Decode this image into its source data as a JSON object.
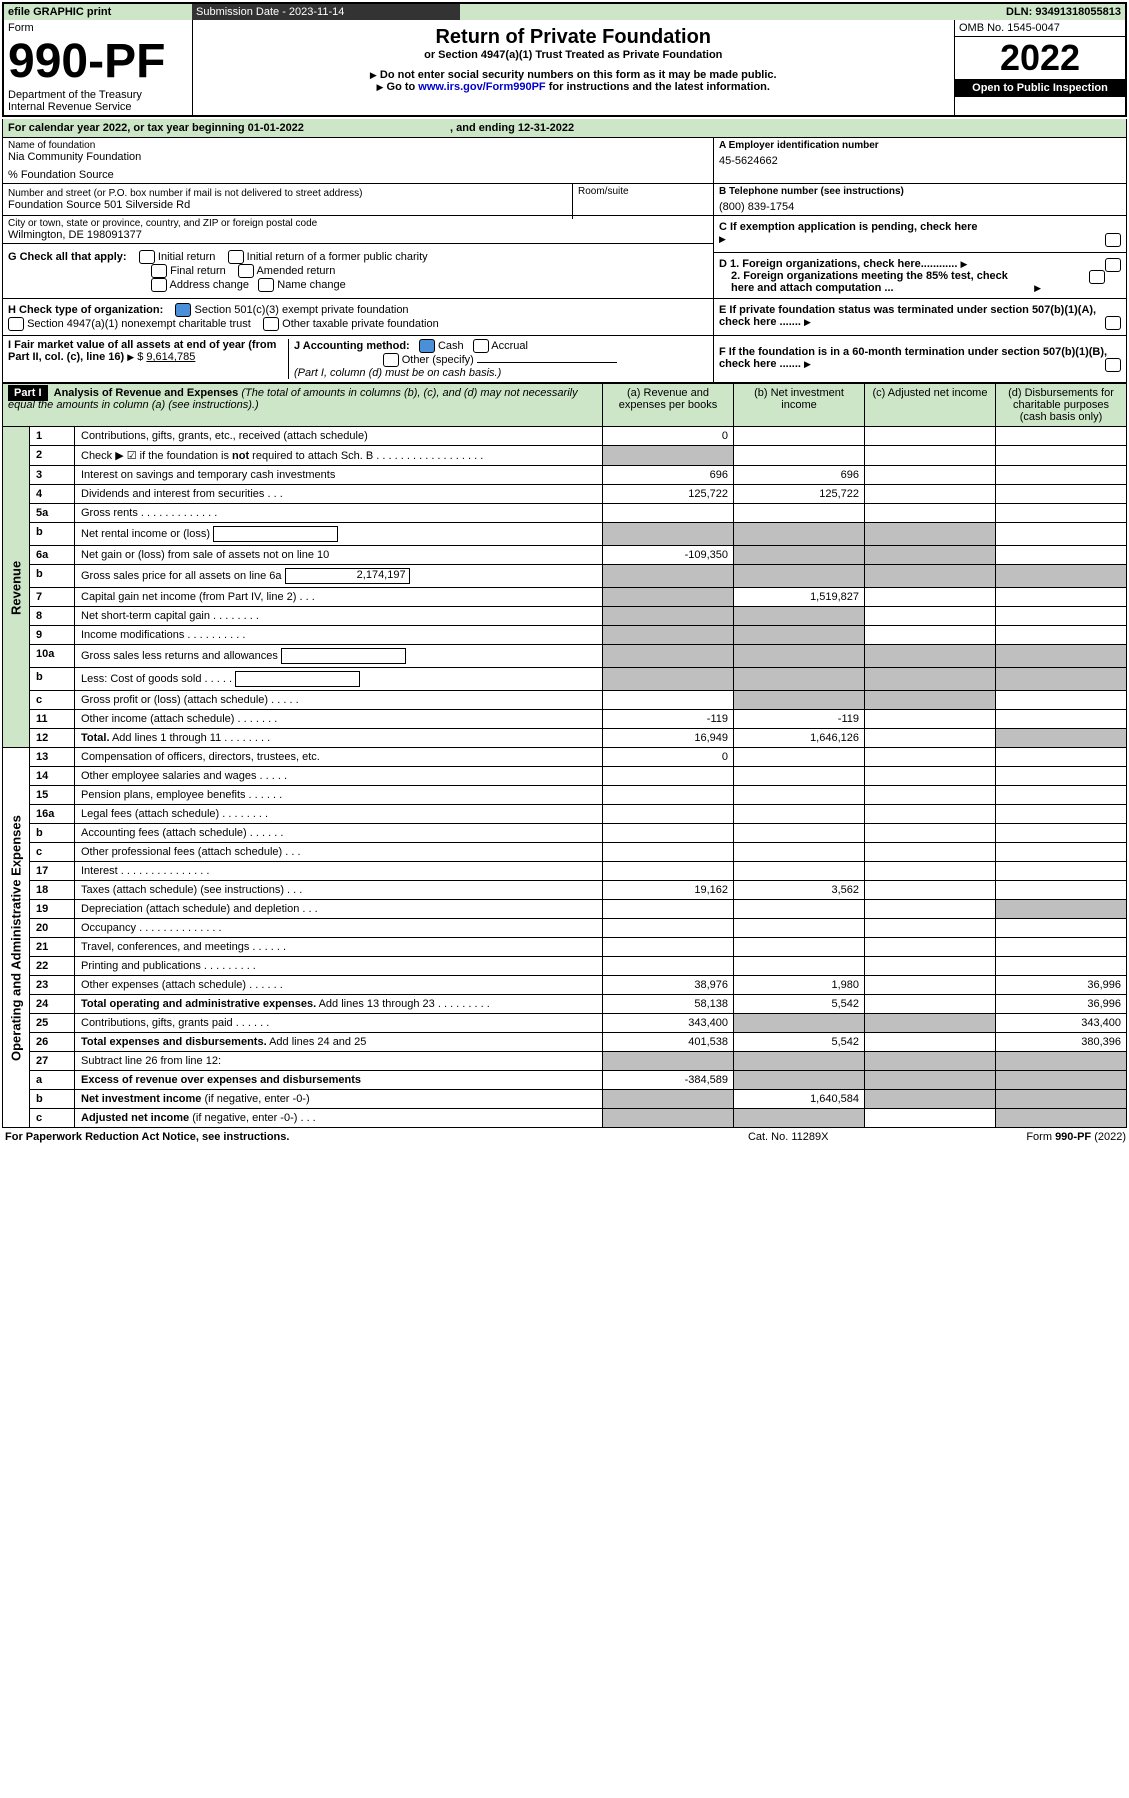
{
  "topbar": {
    "efile": "efile GRAPHIC print",
    "sub": "Submission Date - 2023-11-14",
    "dln": "DLN: 93491318055813"
  },
  "hdr": {
    "form": "Form",
    "num": "990-PF",
    "dept": "Department of the Treasury",
    "irs": "Internal Revenue Service",
    "title": "Return of Private Foundation",
    "sub": "or Section 4947(a)(1) Trust Treated as Private Foundation",
    "l1": "Do not enter social security numbers on this form as it may be made public.",
    "l2a": "Go to ",
    "l2link": "www.irs.gov/Form990PF",
    "l2b": " for instructions and the latest information.",
    "omb": "OMB No. 1545-0047",
    "year": "2022",
    "open": "Open to Public Inspection"
  },
  "cal": {
    "text": "For calendar year 2022, or tax year beginning 01-01-2022",
    "end": ", and ending 12-31-2022"
  },
  "id": {
    "nameLbl": "Name of foundation",
    "name": "Nia Community Foundation",
    "pct": "% Foundation Source",
    "addrLbl": "Number and street (or P.O. box number if mail is not delivered to street address)",
    "addr": "Foundation Source 501 Silverside Rd",
    "room": "Room/suite",
    "cityLbl": "City or town, state or province, country, and ZIP or foreign postal code",
    "city": "Wilmington, DE  198091377",
    "einLbl": "A Employer identification number",
    "ein": "45-5624662",
    "telLbl": "B Telephone number (see instructions)",
    "tel": "(800) 839-1754",
    "c": "C If exemption application is pending, check here",
    "d1": "D 1. Foreign organizations, check here............",
    "d2": "2. Foreign organizations meeting the 85% test, check here and attach computation ...",
    "e": "E If private foundation status was terminated under section 507(b)(1)(A), check here .......",
    "f": "F If the foundation is in a 60-month termination under section 507(b)(1)(B), check here .......",
    "g": "G Check all that apply:",
    "g1": "Initial return",
    "g2": "Initial return of a former public charity",
    "g3": "Final return",
    "g4": "Amended return",
    "g5": "Address change",
    "g6": "Name change",
    "h": "H Check type of organization:",
    "h1": "Section 501(c)(3) exempt private foundation",
    "h2": "Section 4947(a)(1) nonexempt charitable trust",
    "h3": "Other taxable private foundation",
    "i": "I Fair market value of all assets at end of year (from Part II, col. (c), line 16)",
    "iv": "9,614,785",
    "j": "J Accounting method:",
    "j1": "Cash",
    "j2": "Accrual",
    "j3": "Other (specify)",
    "jn": "(Part I, column (d) must be on cash basis.)"
  },
  "p1": {
    "lbl": "Part I",
    "title": "Analysis of Revenue and Expenses",
    "sub": "(The total of amounts in columns (b), (c), and (d) may not necessarily equal the amounts in column (a) (see instructions).)",
    "ca": "(a) Revenue and expenses per books",
    "cb": "(b) Net investment income",
    "cc": "(c) Adjusted net income",
    "cd": "(d) Disbursements for charitable purposes (cash basis only)",
    "rev": "Revenue",
    "exp": "Operating and Administrative Expenses"
  },
  "rows": [
    {
      "n": "1",
      "t": "Contributions, gifts, grants, etc., received (attach schedule)",
      "a": "0"
    },
    {
      "n": "2",
      "t": "Check ▶ ☑ if the foundation is <b>not</b> required to attach Sch. B  .  .  .  .  .  .  .  .  .  .  .  .  .  .  .  .  .  .",
      "gray": "a"
    },
    {
      "n": "3",
      "t": "Interest on savings and temporary cash investments",
      "a": "696",
      "b": "696"
    },
    {
      "n": "4",
      "t": "Dividends and interest from securities  .  .  .",
      "a": "125,722",
      "b": "125,722"
    },
    {
      "n": "5a",
      "t": "Gross rents  .  .  .  .  .  .  .  .  .  .  .  .  ."
    },
    {
      "n": "b",
      "t": "Net rental income or (loss)",
      "box": 1,
      "gray": "abc"
    },
    {
      "n": "6a",
      "t": "Net gain or (loss) from sale of assets not on line 10",
      "a": "-109,350",
      "gray": "bc"
    },
    {
      "n": "b",
      "t": "Gross sales price for all assets on line 6a",
      "box": 1,
      "bv": "2,174,197",
      "gray": "abcd"
    },
    {
      "n": "7",
      "t": "Capital gain net income (from Part IV, line 2)  .  .  .",
      "b": "1,519,827",
      "gray": "a"
    },
    {
      "n": "8",
      "t": "Net short-term capital gain  .  .  .  .  .  .  .  .",
      "gray": "ab"
    },
    {
      "n": "9",
      "t": "Income modifications  .  .  .  .  .  .  .  .  .  .",
      "gray": "ab"
    },
    {
      "n": "10a",
      "t": "Gross sales less returns and allowances",
      "box": 1,
      "gray": "abcd"
    },
    {
      "n": "b",
      "t": "Less: Cost of goods sold  .  .  .  .  .",
      "box": 1,
      "gray": "abcd"
    },
    {
      "n": "c",
      "t": "Gross profit or (loss) (attach schedule)  .  .  .  .  .",
      "gray": "bc"
    },
    {
      "n": "11",
      "t": "Other income (attach schedule)  .  .  .  .  .  .  .",
      "a": "-119",
      "b": "-119"
    },
    {
      "n": "12",
      "t": "<b>Total.</b> Add lines 1 through 11  .  .  .  .  .  .  .  .",
      "a": "16,949",
      "b": "1,646,126",
      "gray": "d"
    }
  ],
  "exps": [
    {
      "n": "13",
      "t": "Compensation of officers, directors, trustees, etc.",
      "a": "0"
    },
    {
      "n": "14",
      "t": "Other employee salaries and wages  .  .  .  .  ."
    },
    {
      "n": "15",
      "t": "Pension plans, employee benefits  .  .  .  .  .  ."
    },
    {
      "n": "16a",
      "t": "Legal fees (attach schedule)  .  .  .  .  .  .  .  ."
    },
    {
      "n": "b",
      "t": "Accounting fees (attach schedule)  .  .  .  .  .  ."
    },
    {
      "n": "c",
      "t": "Other professional fees (attach schedule)  .  .  ."
    },
    {
      "n": "17",
      "t": "Interest  .  .  .  .  .  .  .  .  .  .  .  .  .  .  ."
    },
    {
      "n": "18",
      "t": "Taxes (attach schedule) (see instructions)  .  .  .",
      "a": "19,162",
      "b": "3,562"
    },
    {
      "n": "19",
      "t": "Depreciation (attach schedule) and depletion  .  .  .",
      "gray": "d"
    },
    {
      "n": "20",
      "t": "Occupancy  .  .  .  .  .  .  .  .  .  .  .  .  .  ."
    },
    {
      "n": "21",
      "t": "Travel, conferences, and meetings  .  .  .  .  .  ."
    },
    {
      "n": "22",
      "t": "Printing and publications  .  .  .  .  .  .  .  .  ."
    },
    {
      "n": "23",
      "t": "Other expenses (attach schedule)  .  .  .  .  .  .",
      "a": "38,976",
      "b": "1,980",
      "d": "36,996"
    },
    {
      "n": "24",
      "t": "<b>Total operating and administrative expenses.</b> Add lines 13 through 23  .  .  .  .  .  .  .  .  .",
      "a": "58,138",
      "b": "5,542",
      "d": "36,996"
    },
    {
      "n": "25",
      "t": "Contributions, gifts, grants paid  .  .  .  .  .  .",
      "a": "343,400",
      "gray": "bc",
      "d": "343,400"
    },
    {
      "n": "26",
      "t": "<b>Total expenses and disbursements.</b> Add lines 24 and 25",
      "a": "401,538",
      "b": "5,542",
      "d": "380,396"
    },
    {
      "n": "27",
      "t": "Subtract line 26 from line 12:",
      "gray": "abcd"
    },
    {
      "n": "a",
      "t": "<b>Excess of revenue over expenses and disbursements</b>",
      "a": "-384,589",
      "gray": "bcd"
    },
    {
      "n": "b",
      "t": "<b>Net investment income</b> (if negative, enter -0-)",
      "b": "1,640,584",
      "gray": "acd"
    },
    {
      "n": "c",
      "t": "<b>Adjusted net income</b> (if negative, enter -0-)  .  .  .",
      "gray": "abd"
    }
  ],
  "ftr": {
    "l": "For Paperwork Reduction Act Notice, see instructions.",
    "c": "Cat. No. 11289X",
    "r": "Form 990-PF (2022)"
  }
}
